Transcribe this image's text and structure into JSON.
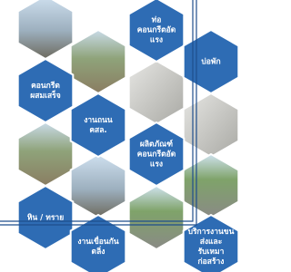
{
  "tiles": [
    {
      "lines": [
        "ท่อ",
        "คอนกรีตอัด",
        "แรง"
      ]
    },
    {
      "lines": [
        "บ่อพัก"
      ]
    },
    {
      "lines": [
        "คอนกรีต",
        "ผสมเสร็จ"
      ]
    },
    {
      "lines": [
        "งานถนน",
        "คสล."
      ]
    },
    {
      "lines": [
        "ผลิตภัณฑ์",
        "คอนกรีตอัด",
        "แรง"
      ]
    },
    {
      "lines": [
        "หิน / ทราย"
      ]
    },
    {
      "lines": [
        "งานเขื่อนกัน",
        "ตลิ่ง"
      ]
    },
    {
      "lines": [
        "บริการงานขน",
        "ส่งและ",
        "รับเหมา",
        "ก่อสร้าง"
      ]
    }
  ]
}
